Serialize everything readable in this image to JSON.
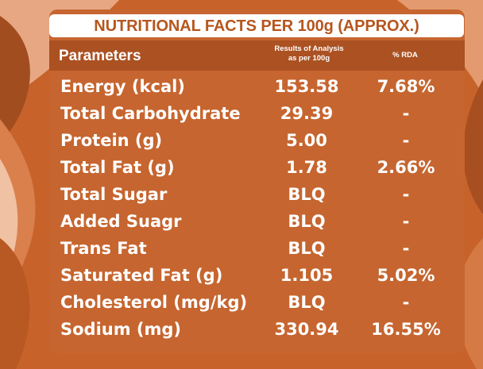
{
  "title": "NUTRITIONAL FACTS PER 100g (APPROX.)",
  "headers": {
    "parameters": "Parameters",
    "results_line1": "Results of Analysis",
    "results_line2": "as per 100g",
    "rda": "% RDA"
  },
  "rows": [
    {
      "parameter": "Energy (kcal)",
      "value": "153.58",
      "rda": "7.68%"
    },
    {
      "parameter": "Total Carbohydrate",
      "value": "29.39",
      "rda": "-"
    },
    {
      "parameter": "Protein (g)",
      "value": "5.00",
      "rda": "-"
    },
    {
      "parameter": "Total Fat (g)",
      "value": "1.78",
      "rda": "2.66%"
    },
    {
      "parameter": "Total Sugar",
      "value": "BLQ",
      "rda": "-"
    },
    {
      "parameter": "Added Suagr",
      "value": "BLQ",
      "rda": "-"
    },
    {
      "parameter": "Trans Fat",
      "value": "BLQ",
      "rda": "-"
    },
    {
      "parameter": "Saturated Fat (g)",
      "value": "1.105",
      "rda": "5.02%"
    },
    {
      "parameter": "Cholesterol (mg/kg)",
      "value": "BLQ",
      "rda": "-"
    },
    {
      "parameter": "Sodium (mg)",
      "value": "330.94",
      "rda": "16.55%"
    }
  ],
  "colors": {
    "background": "#c7632a",
    "header_strip": "#ab5122",
    "title_text": "#b6561e",
    "text": "#ffffff"
  }
}
